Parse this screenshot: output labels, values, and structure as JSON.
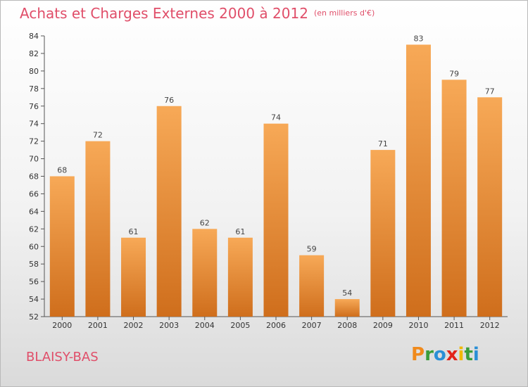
{
  "header": {
    "title": "Achats et Charges Externes 2000 à 2012",
    "units": "(en milliers d'€)"
  },
  "footer": {
    "commune": "BLAISY-BAS",
    "logo": [
      "P",
      "r",
      "o",
      "x",
      "i",
      "t",
      "i"
    ]
  },
  "colors": {
    "title": "#e04e69",
    "bar_light": "#f7a957",
    "bar_dark": "#cf6e1c",
    "logo": [
      "#f08a1c",
      "#3a9d3a",
      "#2a8fd6",
      "#e2231a",
      "#f0b800",
      "#3a9d3a",
      "#2a8fd6"
    ]
  },
  "chart_data": {
    "type": "bar",
    "categories": [
      "2000",
      "2001",
      "2002",
      "2003",
      "2004",
      "2005",
      "2006",
      "2007",
      "2008",
      "2009",
      "2010",
      "2011",
      "2012"
    ],
    "values": [
      68,
      72,
      61,
      76,
      62,
      61,
      74,
      59,
      54,
      71,
      83,
      79,
      77
    ],
    "ylim": [
      52,
      84
    ],
    "yticks": [
      52,
      54,
      56,
      58,
      60,
      62,
      64,
      66,
      68,
      70,
      72,
      74,
      76,
      78,
      80,
      82,
      84
    ],
    "grid": false,
    "title": "Achats et Charges Externes 2000 à 2012",
    "xlabel": "",
    "ylabel": ""
  }
}
